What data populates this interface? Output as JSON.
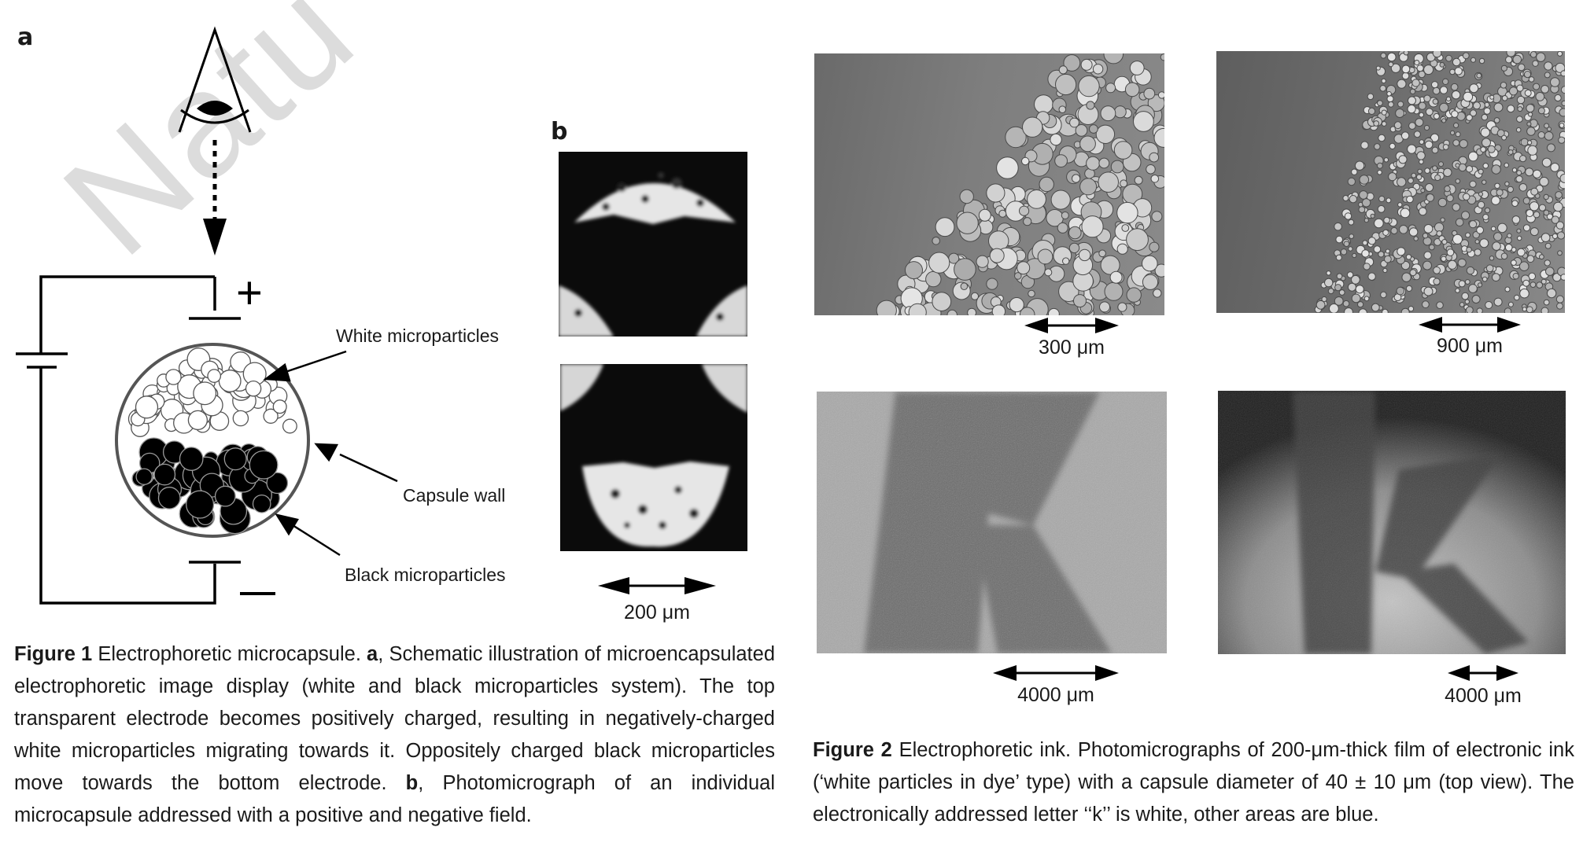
{
  "watermark": "Natu",
  "figure1": {
    "panel_a_letter": "a",
    "panel_b_letter": "b",
    "labels": {
      "white": "White microparticles",
      "wall": "Capsule wall",
      "black": "Black microparticles",
      "plus": "+",
      "minus": "–"
    },
    "scale_b": "200 μm",
    "caption": {
      "title": "Figure 1",
      "t1": " Electrophoretic microcapsule. ",
      "a": "a",
      "t2": ", Schematic illustration of microencapsulated electrophoretic image display (white and black microparticles system). The top transparent electrode becomes positively charged, resulting in negatively-charged white microparticles migrating towards it. Oppositely charged black microparticles move towards the bottom electrode. ",
      "b": "b",
      "t3": ", Photomicrograph of an individual microcapsule addressed with a positive and negative field."
    }
  },
  "figure2": {
    "scales": [
      "300 μm",
      "900 μm",
      "4000 μm",
      "4000 μm"
    ],
    "caption": {
      "title": "Figure 2",
      "text": " Electrophoretic ink. Photomicrographs of 200-μm-thick film of electronic ink (‘white particles in dye’ type) with a capsule diameter of 40 ± 10 μm (top view). The electronically addressed letter ‘‘k’’ is white, other areas are blue."
    }
  }
}
